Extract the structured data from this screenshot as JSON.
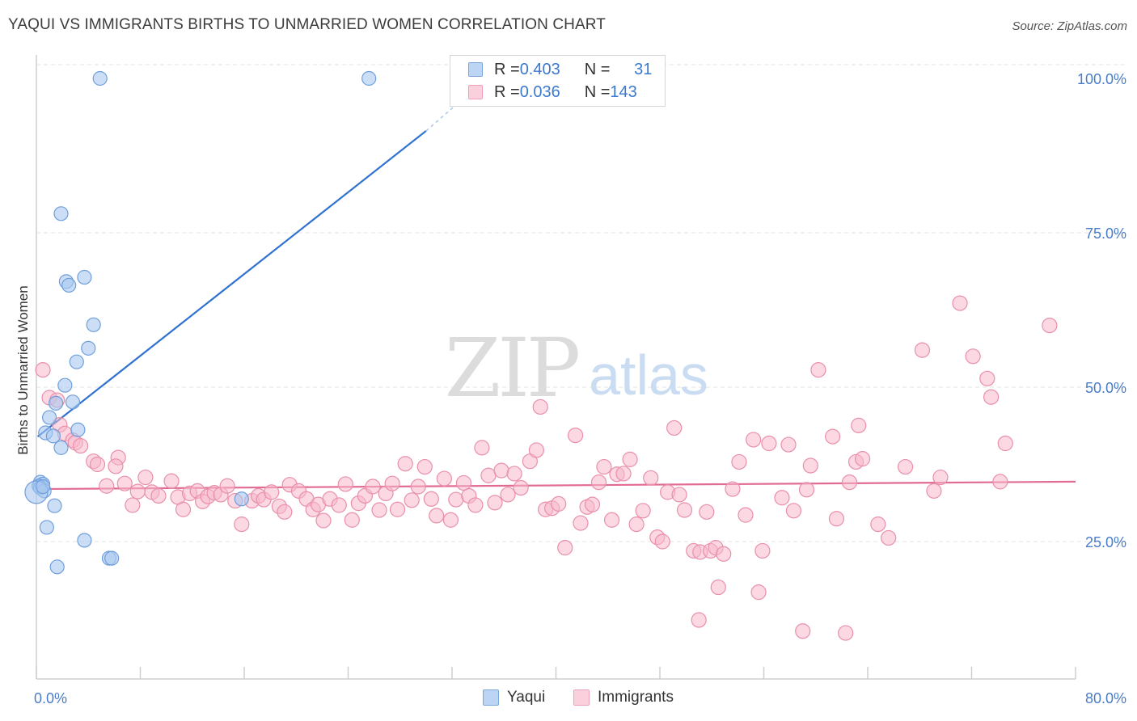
{
  "title": "YAQUI VS IMMIGRANTS BIRTHS TO UNMARRIED WOMEN CORRELATION CHART",
  "source": "Source: ZipAtlas.com",
  "watermark": {
    "zip": "ZIP",
    "atlas": "atlas"
  },
  "legend": {
    "rows": [
      {
        "r_label": "R = ",
        "r_value": "0.403",
        "n_label": "N = ",
        "n_value": "31",
        "color": "#a9c8f0"
      },
      {
        "r_label": "R = ",
        "r_value": "0.036",
        "n_label": "N = ",
        "n_value": "143",
        "color": "#f7b8cb"
      }
    ]
  },
  "bottom_legend": [
    {
      "label": "Yaqui",
      "color": "#a9c8f0"
    },
    {
      "label": "Immigrants",
      "color": "#f7b8cb"
    }
  ],
  "chart_data": {
    "type": "scatter",
    "title": "YAQUI VS IMMIGRANTS BIRTHS TO UNMARRIED WOMEN CORRELATION CHART",
    "xlabel": "",
    "ylabel": "Births to Unmarried Women",
    "xlim": [
      0,
      80
    ],
    "ylim": [
      0,
      105
    ],
    "x_tick_labels": [
      "0.0%",
      "80.0%"
    ],
    "y_ticks": [
      25,
      50,
      75,
      100
    ],
    "y_tick_labels": [
      "25.0%",
      "50.0%",
      "75.0%",
      "100.0%"
    ],
    "grid": true,
    "colors": {
      "yaqui_fill": "#a9c8f0",
      "yaqui_stroke": "#6f9fdc",
      "yaqui_line": "#2f72d0",
      "imm_fill": "#f7b8cb",
      "imm_stroke": "#e98fab",
      "imm_line": "#e26b94",
      "tick_label": "#4a7cc9"
    },
    "series": [
      {
        "name": "Yaqui",
        "trend": {
          "x": [
            0.1,
            30
          ],
          "y": [
            42,
            91.5
          ],
          "dashed_to": [
            33,
            97
          ]
        },
        "points": [
          [
            4.9,
            100
          ],
          [
            25.6,
            100
          ],
          [
            1.9,
            78.1
          ],
          [
            2.3,
            67.1
          ],
          [
            2.5,
            66.5
          ],
          [
            3.7,
            67.8
          ],
          [
            4.4,
            60.1
          ],
          [
            4.0,
            56.3
          ],
          [
            3.1,
            54.1
          ],
          [
            2.2,
            50.3
          ],
          [
            2.8,
            47.6
          ],
          [
            1.5,
            47.4
          ],
          [
            1.0,
            45.1
          ],
          [
            3.2,
            43.1
          ],
          [
            0.7,
            42.6
          ],
          [
            1.3,
            42.1
          ],
          [
            1.9,
            40.2
          ],
          [
            0.3,
            34.6
          ],
          [
            0.5,
            34.3
          ],
          [
            0.2,
            34.0
          ],
          [
            0.3,
            33.7
          ],
          [
            0.6,
            33.2
          ],
          [
            0.0,
            33.0
          ],
          [
            1.4,
            30.8
          ],
          [
            0.8,
            27.3
          ],
          [
            3.7,
            25.2
          ],
          [
            1.6,
            20.9
          ],
          [
            5.6,
            22.3
          ],
          [
            5.8,
            22.3
          ],
          [
            15.8,
            31.9
          ],
          [
            0.5,
            33.9
          ]
        ]
      },
      {
        "name": "Immigrants",
        "trend": {
          "x": [
            0,
            80
          ],
          "y": [
            33.5,
            34.7
          ]
        },
        "points": [
          [
            0.5,
            52.8
          ],
          [
            1.0,
            48.3
          ],
          [
            1.6,
            47.9
          ],
          [
            1.8,
            43.9
          ],
          [
            2.2,
            42.5
          ],
          [
            2.8,
            41.4
          ],
          [
            3.0,
            41.0
          ],
          [
            3.4,
            40.5
          ],
          [
            4.4,
            38.0
          ],
          [
            4.7,
            37.5
          ],
          [
            6.3,
            38.6
          ],
          [
            6.1,
            37.2
          ],
          [
            5.4,
            34.0
          ],
          [
            6.8,
            34.4
          ],
          [
            8.4,
            35.4
          ],
          [
            10.4,
            34.8
          ],
          [
            7.4,
            30.9
          ],
          [
            7.8,
            33.1
          ],
          [
            8.9,
            33.0
          ],
          [
            9.4,
            32.4
          ],
          [
            10.9,
            32.2
          ],
          [
            11.3,
            30.2
          ],
          [
            11.8,
            32.8
          ],
          [
            12.4,
            33.2
          ],
          [
            12.8,
            31.5
          ],
          [
            13.2,
            32.3
          ],
          [
            13.7,
            32.9
          ],
          [
            14.2,
            32.6
          ],
          [
            14.7,
            34.0
          ],
          [
            15.3,
            31.6
          ],
          [
            15.8,
            27.8
          ],
          [
            16.6,
            31.6
          ],
          [
            17.1,
            32.4
          ],
          [
            17.5,
            31.8
          ],
          [
            18.1,
            33.0
          ],
          [
            18.7,
            30.7
          ],
          [
            19.1,
            29.8
          ],
          [
            19.5,
            34.2
          ],
          [
            20.2,
            33.2
          ],
          [
            20.8,
            31.9
          ],
          [
            21.3,
            30.2
          ],
          [
            21.7,
            31.0
          ],
          [
            22.1,
            28.4
          ],
          [
            22.6,
            31.9
          ],
          [
            23.3,
            30.9
          ],
          [
            23.8,
            34.3
          ],
          [
            24.3,
            28.5
          ],
          [
            24.8,
            31.2
          ],
          [
            25.3,
            32.4
          ],
          [
            25.9,
            33.9
          ],
          [
            26.4,
            30.1
          ],
          [
            26.9,
            32.8
          ],
          [
            27.4,
            34.4
          ],
          [
            27.8,
            30.2
          ],
          [
            28.4,
            37.6
          ],
          [
            28.9,
            31.7
          ],
          [
            29.4,
            33.9
          ],
          [
            29.9,
            37.1
          ],
          [
            30.4,
            31.9
          ],
          [
            30.8,
            29.2
          ],
          [
            31.4,
            35.2
          ],
          [
            31.9,
            28.5
          ],
          [
            32.3,
            31.8
          ],
          [
            32.9,
            34.5
          ],
          [
            33.3,
            32.4
          ],
          [
            33.8,
            30.9
          ],
          [
            34.3,
            40.2
          ],
          [
            34.8,
            35.7
          ],
          [
            35.3,
            31.3
          ],
          [
            35.8,
            36.5
          ],
          [
            36.3,
            32.6
          ],
          [
            36.8,
            36.0
          ],
          [
            37.3,
            33.7
          ],
          [
            38.0,
            38.0
          ],
          [
            38.5,
            39.8
          ],
          [
            38.8,
            46.8
          ],
          [
            39.2,
            30.2
          ],
          [
            39.7,
            30.4
          ],
          [
            40.2,
            31.1
          ],
          [
            40.7,
            24.0
          ],
          [
            41.5,
            42.2
          ],
          [
            41.9,
            28.0
          ],
          [
            42.4,
            30.6
          ],
          [
            42.8,
            31.0
          ],
          [
            43.3,
            34.6
          ],
          [
            43.7,
            37.1
          ],
          [
            44.3,
            28.5
          ],
          [
            44.7,
            35.9
          ],
          [
            45.2,
            36.0
          ],
          [
            45.7,
            38.3
          ],
          [
            46.2,
            27.8
          ],
          [
            46.7,
            30.0
          ],
          [
            47.3,
            35.3
          ],
          [
            47.8,
            25.7
          ],
          [
            48.2,
            25.0
          ],
          [
            48.6,
            33.0
          ],
          [
            49.1,
            43.4
          ],
          [
            49.5,
            32.6
          ],
          [
            49.9,
            30.1
          ],
          [
            50.6,
            23.5
          ],
          [
            51.1,
            23.3
          ],
          [
            51.6,
            29.8
          ],
          [
            51.9,
            23.5
          ],
          [
            52.3,
            24.0
          ],
          [
            52.9,
            23.0
          ],
          [
            52.5,
            17.6
          ],
          [
            51.0,
            12.3
          ],
          [
            53.6,
            33.5
          ],
          [
            54.1,
            37.9
          ],
          [
            54.6,
            29.3
          ],
          [
            55.2,
            41.5
          ],
          [
            55.6,
            16.8
          ],
          [
            55.9,
            23.5
          ],
          [
            56.4,
            40.9
          ],
          [
            57.4,
            32.1
          ],
          [
            57.9,
            40.7
          ],
          [
            58.3,
            30.0
          ],
          [
            59.3,
            33.4
          ],
          [
            59.6,
            37.3
          ],
          [
            60.2,
            52.8
          ],
          [
            61.3,
            42.0
          ],
          [
            61.6,
            28.7
          ],
          [
            62.6,
            34.6
          ],
          [
            63.1,
            37.9
          ],
          [
            63.6,
            38.4
          ],
          [
            63.3,
            43.8
          ],
          [
            64.8,
            27.8
          ],
          [
            65.6,
            25.6
          ],
          [
            66.9,
            37.1
          ],
          [
            68.2,
            56.0
          ],
          [
            69.1,
            33.2
          ],
          [
            69.6,
            35.4
          ],
          [
            71.1,
            63.6
          ],
          [
            72.1,
            55.0
          ],
          [
            73.2,
            51.4
          ],
          [
            73.5,
            48.4
          ],
          [
            74.2,
            34.7
          ],
          [
            74.6,
            40.9
          ],
          [
            78.0,
            60.0
          ],
          [
            59.0,
            10.5
          ],
          [
            62.3,
            10.2
          ]
        ]
      }
    ]
  }
}
